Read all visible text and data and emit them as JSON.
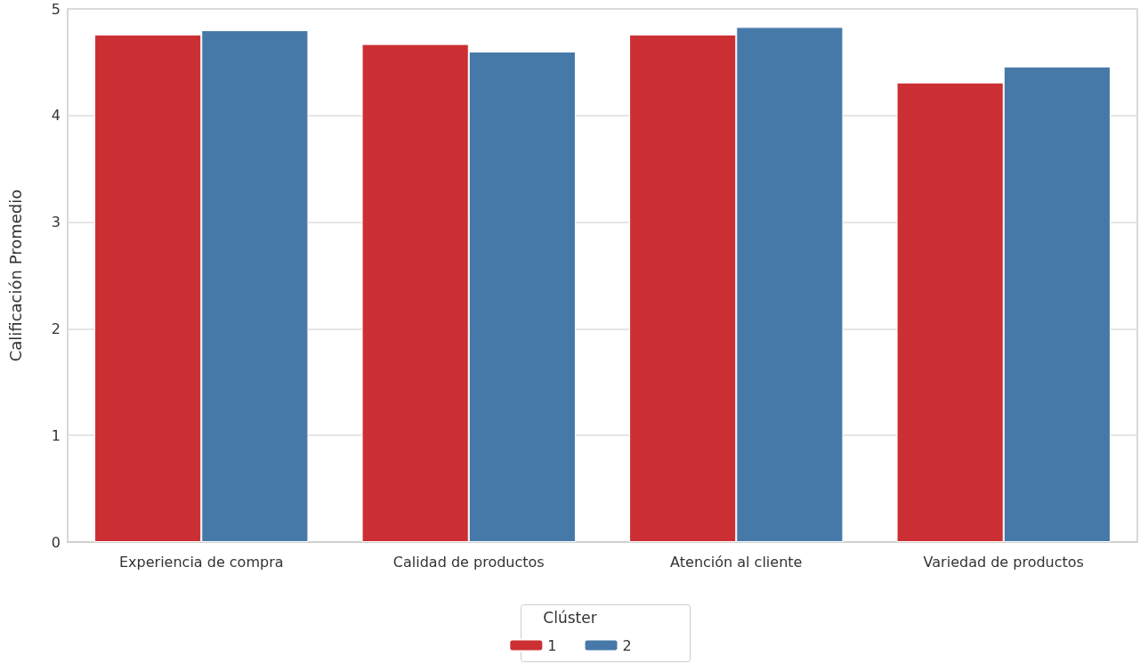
{
  "chart_data": {
    "type": "bar",
    "ylabel": "Calificación Promedio",
    "legend_title": "Clúster",
    "categories": [
      "Experiencia de compra",
      "Calidad de productos",
      "Atención al cliente",
      "Variedad de productos"
    ],
    "series": [
      {
        "name": "1",
        "color": "#cc2f33",
        "values": [
          4.76,
          4.67,
          4.76,
          4.31
        ]
      },
      {
        "name": "2",
        "color": "#4679a8",
        "values": [
          4.8,
          4.6,
          4.83,
          4.46
        ]
      }
    ],
    "ylim": [
      0,
      5
    ],
    "yticks": [
      0,
      1,
      2,
      3,
      4,
      5
    ],
    "grid": "y",
    "legend": "bottom"
  }
}
